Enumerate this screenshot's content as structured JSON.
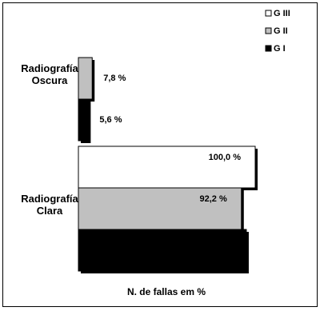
{
  "chart_data": {
    "type": "hbar",
    "categories": [
      "Radiografía Oscura",
      "Radiografía Clara"
    ],
    "x_label": "N. de fallas em %",
    "xlim": [
      0,
      100
    ],
    "legend": "top-right",
    "series": [
      {
        "name": "G III",
        "color": "#ffffff",
        "values": [
          0,
          100.0
        ],
        "value_labels": [
          null,
          "100,0 %"
        ]
      },
      {
        "name": "G II",
        "color": "#c0c0c0",
        "values": [
          7.8,
          92.2
        ],
        "value_labels": [
          "7,8 %",
          "92,2 %"
        ]
      },
      {
        "name": "G I",
        "color": "#000000",
        "values": [
          5.6,
          95
        ],
        "value_labels": [
          "5,6 %",
          null
        ]
      }
    ]
  }
}
